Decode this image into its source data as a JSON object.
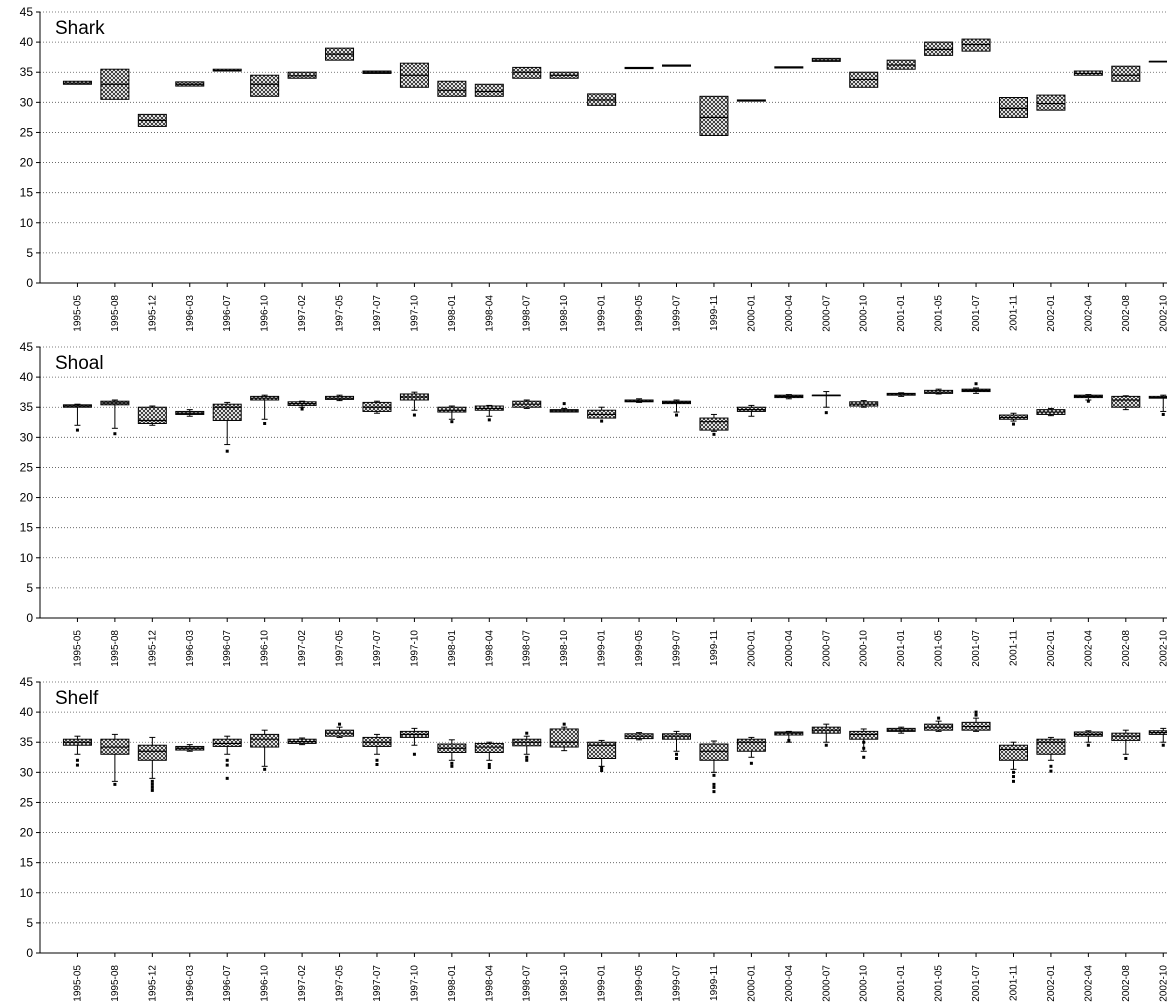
{
  "chart_data": [
    {
      "type": "box",
      "title": "Shark",
      "ylim": [
        0,
        45
      ],
      "yticks": [
        0,
        5,
        10,
        15,
        20,
        25,
        30,
        35,
        40,
        45
      ],
      "grid": true,
      "categories": [
        "1995-05",
        "1995-08",
        "1995-12",
        "1996-03",
        "1996-07",
        "1996-10",
        "1997-02",
        "1997-05",
        "1997-07",
        "1997-10",
        "1998-01",
        "1998-04",
        "1998-07",
        "1998-10",
        "1999-01",
        "1999-05",
        "1999-07",
        "1999-11",
        "2000-01",
        "2000-04",
        "2000-07",
        "2000-10",
        "2001-01",
        "2001-05",
        "2001-07",
        "2001-11",
        "2002-01",
        "2002-04",
        "2002-08",
        "2002-10"
      ],
      "boxes": [
        {
          "q1": 33.0,
          "median": 33.2,
          "q3": 33.5
        },
        {
          "q1": 30.5,
          "median": 33.0,
          "q3": 35.5
        },
        {
          "q1": 26.0,
          "median": 27.0,
          "q3": 28.0
        },
        {
          "q1": 32.7,
          "median": 33.0,
          "q3": 33.4
        },
        {
          "q1": 35.2,
          "median": 35.3,
          "q3": 35.5
        },
        {
          "q1": 31.0,
          "median": 33.0,
          "q3": 34.5
        },
        {
          "q1": 34.0,
          "median": 34.4,
          "q3": 35.0
        },
        {
          "q1": 37.0,
          "median": 38.0,
          "q3": 39.0
        },
        {
          "q1": 34.8,
          "median": 35.0,
          "q3": 35.2
        },
        {
          "q1": 32.5,
          "median": 34.5,
          "q3": 36.5
        },
        {
          "q1": 31.0,
          "median": 32.0,
          "q3": 33.5
        },
        {
          "q1": 31.0,
          "median": 31.8,
          "q3": 33.0
        },
        {
          "q1": 34.0,
          "median": 35.0,
          "q3": 35.8
        },
        {
          "q1": 34.0,
          "median": 34.5,
          "q3": 35.0
        },
        {
          "q1": 29.5,
          "median": 30.4,
          "q3": 31.4
        },
        {
          "q1": 35.6,
          "median": 35.7,
          "q3": 35.8
        },
        {
          "q1": 36.0,
          "median": 36.1,
          "q3": 36.2
        },
        {
          "q1": 24.5,
          "median": 27.5,
          "q3": 31.0
        },
        {
          "q1": 30.2,
          "median": 30.3,
          "q3": 30.4
        },
        {
          "q1": 35.7,
          "median": 35.8,
          "q3": 35.9
        },
        {
          "q1": 36.8,
          "median": 37.0,
          "q3": 37.3
        },
        {
          "q1": 32.5,
          "median": 33.8,
          "q3": 35.0
        },
        {
          "q1": 35.5,
          "median": 36.2,
          "q3": 37.0
        },
        {
          "q1": 37.8,
          "median": 38.8,
          "q3": 40.0
        },
        {
          "q1": 38.5,
          "median": 39.6,
          "q3": 40.5
        },
        {
          "q1": 27.5,
          "median": 29.0,
          "q3": 30.8
        },
        {
          "q1": 28.7,
          "median": 29.8,
          "q3": 31.2
        },
        {
          "q1": 34.5,
          "median": 34.8,
          "q3": 35.2
        },
        {
          "q1": 33.5,
          "median": 34.5,
          "q3": 36.0
        },
        {
          "q1": 36.8,
          "median": 36.8,
          "q3": 36.8
        }
      ]
    },
    {
      "type": "box",
      "title": "Shoal",
      "ylim": [
        0,
        45
      ],
      "yticks": [
        0,
        5,
        10,
        15,
        20,
        25,
        30,
        35,
        40,
        45
      ],
      "grid": true,
      "categories": [
        "1995-05",
        "1995-08",
        "1995-12",
        "1996-03",
        "1996-07",
        "1996-10",
        "1997-02",
        "1997-05",
        "1997-07",
        "1997-10",
        "1998-01",
        "1998-04",
        "1998-07",
        "1998-10",
        "1999-01",
        "1999-05",
        "1999-07",
        "1999-11",
        "2000-01",
        "2000-04",
        "2000-07",
        "2000-10",
        "2001-01",
        "2001-05",
        "2001-07",
        "2001-11",
        "2002-01",
        "2002-04",
        "2002-08",
        "2002-10"
      ],
      "boxes": [
        {
          "lo": 32.0,
          "q1": 35.0,
          "median": 35.2,
          "q3": 35.4,
          "hi": 35.5,
          "outliers": [
            31.2
          ]
        },
        {
          "lo": 31.5,
          "q1": 35.4,
          "median": 35.7,
          "q3": 36.0,
          "hi": 36.2,
          "outliers": [
            30.6
          ]
        },
        {
          "lo": 32.0,
          "q1": 32.3,
          "median": 32.8,
          "q3": 35.0,
          "hi": 35.2,
          "outliers": []
        },
        {
          "lo": 33.5,
          "q1": 33.8,
          "median": 34.0,
          "q3": 34.3,
          "hi": 34.6,
          "outliers": []
        },
        {
          "lo": 28.8,
          "q1": 32.8,
          "median": 35.0,
          "q3": 35.5,
          "hi": 35.8,
          "outliers": [
            27.7
          ]
        },
        {
          "lo": 33.0,
          "q1": 36.2,
          "median": 36.5,
          "q3": 36.8,
          "hi": 37.0,
          "outliers": [
            32.3
          ]
        },
        {
          "lo": 35.0,
          "q1": 35.3,
          "median": 35.6,
          "q3": 35.9,
          "hi": 36.0,
          "outliers": [
            34.7
          ]
        },
        {
          "lo": 36.1,
          "q1": 36.3,
          "median": 36.5,
          "q3": 36.8,
          "hi": 37.0,
          "outliers": []
        },
        {
          "lo": 34.0,
          "q1": 34.3,
          "median": 35.0,
          "q3": 35.8,
          "hi": 36.0,
          "outliers": []
        },
        {
          "lo": 34.5,
          "q1": 36.2,
          "median": 36.7,
          "q3": 37.2,
          "hi": 37.5,
          "outliers": [
            33.7
          ]
        },
        {
          "lo": 33.0,
          "q1": 34.2,
          "median": 34.5,
          "q3": 35.0,
          "hi": 35.2,
          "outliers": [
            32.6
          ]
        },
        {
          "lo": 33.5,
          "q1": 34.5,
          "median": 34.8,
          "q3": 35.2,
          "hi": 35.3,
          "outliers": [
            32.9
          ]
        },
        {
          "lo": 34.8,
          "q1": 35.0,
          "median": 35.5,
          "q3": 36.0,
          "hi": 36.2,
          "outliers": []
        },
        {
          "lo": 34.2,
          "q1": 34.2,
          "median": 34.4,
          "q3": 34.6,
          "hi": 34.8,
          "outliers": [
            35.6
          ]
        },
        {
          "lo": 33.2,
          "q1": 33.2,
          "median": 33.8,
          "q3": 34.5,
          "hi": 35.0,
          "outliers": [
            32.7
          ]
        },
        {
          "lo": 35.8,
          "q1": 35.9,
          "median": 36.0,
          "q3": 36.2,
          "hi": 36.4,
          "outliers": []
        },
        {
          "lo": 34.2,
          "q1": 35.6,
          "median": 35.8,
          "q3": 36.0,
          "hi": 36.2,
          "outliers": [
            33.7
          ]
        },
        {
          "lo": 31.0,
          "q1": 31.2,
          "median": 32.6,
          "q3": 33.2,
          "hi": 33.8,
          "outliers": [
            30.5
          ]
        },
        {
          "lo": 33.5,
          "q1": 34.3,
          "median": 34.6,
          "q3": 35.0,
          "hi": 35.3,
          "outliers": []
        },
        {
          "lo": 36.4,
          "q1": 36.6,
          "median": 36.8,
          "q3": 37.0,
          "hi": 37.1,
          "outliers": []
        },
        {
          "lo": 35.0,
          "q1": 37.0,
          "median": 37.0,
          "q3": 37.0,
          "hi": 37.6,
          "outliers": [
            34.1
          ]
        },
        {
          "lo": 35.0,
          "q1": 35.2,
          "median": 35.5,
          "q3": 35.9,
          "hi": 36.1,
          "outliers": []
        },
        {
          "lo": 36.8,
          "q1": 37.0,
          "median": 37.2,
          "q3": 37.3,
          "hi": 37.4,
          "outliers": []
        },
        {
          "lo": 37.2,
          "q1": 37.3,
          "median": 37.5,
          "q3": 37.8,
          "hi": 38.0,
          "outliers": []
        },
        {
          "lo": 37.3,
          "q1": 37.6,
          "median": 37.8,
          "q3": 38.0,
          "hi": 38.2,
          "outliers": [
            38.9
          ]
        },
        {
          "lo": 32.7,
          "q1": 33.0,
          "median": 33.3,
          "q3": 33.7,
          "hi": 34.0,
          "outliers": [
            32.2
          ]
        },
        {
          "lo": 33.6,
          "q1": 33.8,
          "median": 34.2,
          "q3": 34.6,
          "hi": 34.8,
          "outliers": []
        },
        {
          "lo": 36.2,
          "q1": 36.6,
          "median": 36.8,
          "q3": 37.0,
          "hi": 37.1,
          "outliers": [
            36.0
          ]
        },
        {
          "lo": 34.6,
          "q1": 35.0,
          "median": 36.2,
          "q3": 36.8,
          "hi": 36.9,
          "outliers": []
        },
        {
          "lo": 34.3,
          "q1": 36.5,
          "median": 36.6,
          "q3": 36.8,
          "hi": 37.0,
          "outliers": [
            33.8
          ]
        }
      ]
    },
    {
      "type": "box",
      "title": "Shelf",
      "ylim": [
        0,
        45
      ],
      "yticks": [
        0,
        5,
        10,
        15,
        20,
        25,
        30,
        35,
        40,
        45
      ],
      "grid": true,
      "categories": [
        "1995-05",
        "1995-08",
        "1995-12",
        "1996-03",
        "1996-07",
        "1996-10",
        "1997-02",
        "1997-05",
        "1997-07",
        "1997-10",
        "1998-01",
        "1998-04",
        "1998-07",
        "1998-10",
        "1999-01",
        "1999-05",
        "1999-07",
        "1999-11",
        "2000-01",
        "2000-04",
        "2000-07",
        "2000-10",
        "2001-01",
        "2001-05",
        "2001-07",
        "2001-11",
        "2002-01",
        "2002-04",
        "2002-08",
        "2002-10"
      ],
      "boxes": [
        {
          "lo": 33.0,
          "q1": 34.5,
          "median": 35.0,
          "q3": 35.5,
          "hi": 36.0,
          "outliers": [
            32.0,
            31.2
          ]
        },
        {
          "lo": 28.5,
          "q1": 33.0,
          "median": 34.2,
          "q3": 35.5,
          "hi": 36.3,
          "outliers": [
            28.0
          ]
        },
        {
          "lo": 29.0,
          "q1": 32.0,
          "median": 33.5,
          "q3": 34.5,
          "hi": 35.8,
          "outliers": [
            28.5,
            28.0,
            27.5,
            27.0
          ]
        },
        {
          "lo": 33.5,
          "q1": 33.7,
          "median": 34.0,
          "q3": 34.3,
          "hi": 34.6,
          "outliers": []
        },
        {
          "lo": 33.0,
          "q1": 34.3,
          "median": 34.8,
          "q3": 35.5,
          "hi": 36.0,
          "outliers": [
            32.0,
            31.2,
            29.0
          ]
        },
        {
          "lo": 31.0,
          "q1": 34.2,
          "median": 35.5,
          "q3": 36.3,
          "hi": 37.0,
          "outliers": [
            30.5
          ]
        },
        {
          "lo": 34.6,
          "q1": 34.8,
          "median": 35.1,
          "q3": 35.5,
          "hi": 35.7,
          "outliers": []
        },
        {
          "lo": 35.8,
          "q1": 36.0,
          "median": 36.5,
          "q3": 37.0,
          "hi": 37.5,
          "outliers": [
            38.0
          ]
        },
        {
          "lo": 33.0,
          "q1": 34.3,
          "median": 35.0,
          "q3": 35.8,
          "hi": 36.3,
          "outliers": [
            32.0,
            31.3
          ]
        },
        {
          "lo": 34.5,
          "q1": 35.8,
          "median": 36.3,
          "q3": 36.8,
          "hi": 37.3,
          "outliers": [
            33.0
          ]
        },
        {
          "lo": 32.0,
          "q1": 33.3,
          "median": 34.0,
          "q3": 34.7,
          "hi": 35.4,
          "outliers": [
            31.5,
            31.0
          ]
        },
        {
          "lo": 32.0,
          "q1": 33.3,
          "median": 34.2,
          "q3": 34.8,
          "hi": 35.0,
          "outliers": [
            31.3,
            30.8
          ]
        },
        {
          "lo": 33.0,
          "q1": 34.4,
          "median": 35.0,
          "q3": 35.5,
          "hi": 36.0,
          "outliers": [
            32.5,
            32.0,
            36.5
          ]
        },
        {
          "lo": 33.6,
          "q1": 34.2,
          "median": 35.0,
          "q3": 37.2,
          "hi": 37.5,
          "outliers": [
            38.0
          ]
        },
        {
          "lo": 31.0,
          "q1": 32.3,
          "median": 34.5,
          "q3": 35.0,
          "hi": 35.3,
          "outliers": [
            30.8,
            30.3
          ]
        },
        {
          "lo": 35.4,
          "q1": 35.6,
          "median": 36.0,
          "q3": 36.4,
          "hi": 36.6,
          "outliers": []
        },
        {
          "lo": 33.5,
          "q1": 35.5,
          "median": 36.0,
          "q3": 36.4,
          "hi": 36.8,
          "outliers": [
            33.0,
            32.3
          ]
        },
        {
          "lo": 30.0,
          "q1": 32.0,
          "median": 33.5,
          "q3": 34.7,
          "hi": 35.2,
          "outliers": [
            29.5,
            28.0,
            27.5,
            26.8
          ]
        },
        {
          "lo": 32.5,
          "q1": 33.5,
          "median": 35.0,
          "q3": 35.5,
          "hi": 35.8,
          "outliers": [
            31.5
          ]
        },
        {
          "lo": 35.0,
          "q1": 36.2,
          "median": 36.5,
          "q3": 36.7,
          "hi": 36.8,
          "outliers": [
            35.3
          ]
        },
        {
          "lo": 35.0,
          "q1": 36.5,
          "median": 37.0,
          "q3": 37.5,
          "hi": 38.0,
          "outliers": [
            34.5
          ]
        },
        {
          "lo": 33.5,
          "q1": 35.5,
          "median": 36.3,
          "q3": 36.8,
          "hi": 37.2,
          "outliers": [
            35.0,
            34.0,
            32.5
          ]
        },
        {
          "lo": 36.5,
          "q1": 36.8,
          "median": 37.0,
          "q3": 37.3,
          "hi": 37.5,
          "outliers": []
        },
        {
          "lo": 36.8,
          "q1": 37.0,
          "median": 37.5,
          "q3": 38.0,
          "hi": 38.5,
          "outliers": [
            39.0
          ]
        },
        {
          "lo": 36.8,
          "q1": 37.0,
          "median": 37.6,
          "q3": 38.3,
          "hi": 39.0,
          "outliers": [
            39.5,
            40.0
          ]
        },
        {
          "lo": 30.5,
          "q1": 32.0,
          "median": 33.8,
          "q3": 34.5,
          "hi": 35.0,
          "outliers": [
            30.0,
            29.3,
            28.5
          ]
        },
        {
          "lo": 32.0,
          "q1": 33.0,
          "median": 35.0,
          "q3": 35.5,
          "hi": 35.8,
          "outliers": [
            31.0,
            30.2
          ]
        },
        {
          "lo": 35.0,
          "q1": 36.0,
          "median": 36.3,
          "q3": 36.7,
          "hi": 36.9,
          "outliers": [
            34.5
          ]
        },
        {
          "lo": 33.0,
          "q1": 35.3,
          "median": 36.0,
          "q3": 36.5,
          "hi": 37.0,
          "outliers": [
            32.3
          ]
        },
        {
          "lo": 35.0,
          "q1": 36.3,
          "median": 36.6,
          "q3": 36.9,
          "hi": 37.3,
          "outliers": [
            34.5
          ]
        }
      ]
    }
  ]
}
